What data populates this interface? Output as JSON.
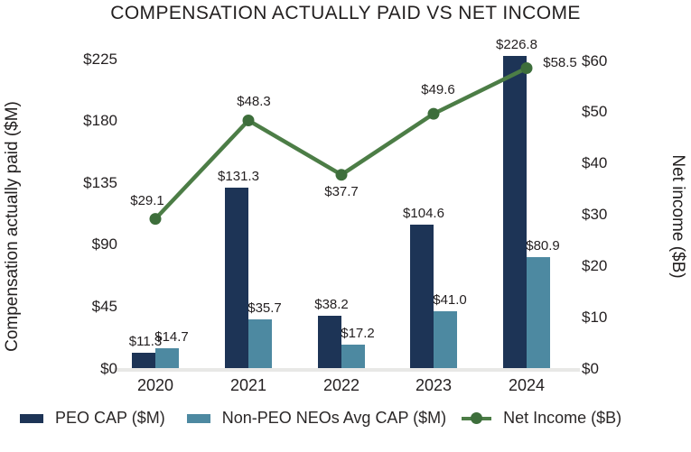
{
  "chart_data": {
    "type": "bar+line",
    "title": "COMPENSATION ACTUALLY PAID VS NET INCOME",
    "categories": [
      "2020",
      "2021",
      "2022",
      "2023",
      "2024"
    ],
    "series": [
      {
        "name": "PEO CAP ($M)",
        "type": "bar",
        "axis": "left",
        "color": "#1d3456",
        "values": [
          11.3,
          131.3,
          38.2,
          104.6,
          226.8
        ],
        "labels": [
          "$11.3",
          "$131.3",
          "$38.2",
          "$104.6",
          "$226.8"
        ]
      },
      {
        "name": "Non-PEO NEOs Avg CAP ($M)",
        "type": "bar",
        "axis": "left",
        "color": "#4d89a1",
        "values": [
          14.7,
          35.7,
          17.2,
          41.0,
          80.9
        ],
        "labels": [
          "$14.7",
          "$35.7",
          "$17.2",
          "$41.0",
          "$80.9"
        ]
      },
      {
        "name": "Net Income ($B)",
        "type": "line",
        "axis": "right",
        "color": "#4c7d46",
        "marker_color": "#3d6e3b",
        "values": [
          29.1,
          48.3,
          37.7,
          49.6,
          58.5
        ],
        "labels": [
          "$29.1",
          "$48.3",
          "$37.7",
          "$49.6",
          "$58.5"
        ]
      }
    ],
    "left_axis": {
      "label": "Compensation actually paid ($M)",
      "tick_values": [
        0,
        45,
        90,
        135,
        180,
        225
      ],
      "tick_labels": [
        "$0",
        "$45",
        "$90",
        "$135",
        "$180",
        "$225"
      ],
      "min": 0,
      "max": 225
    },
    "right_axis": {
      "label": "Net income ($B)",
      "tick_values": [
        0,
        10,
        20,
        30,
        40,
        50,
        60
      ],
      "tick_labels": [
        "$0",
        "$10",
        "$20",
        "$30",
        "$40",
        "$50",
        "$60"
      ],
      "min": 0,
      "max": 60
    },
    "grid": false,
    "legend_position": "bottom",
    "colors": {
      "text": "#231f20",
      "baseline": "#e8e8e6",
      "background": "#ffffff"
    }
  }
}
